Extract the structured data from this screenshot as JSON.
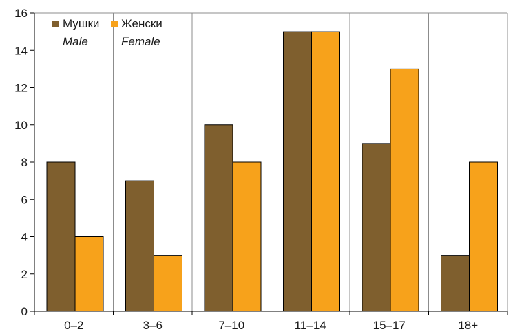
{
  "chart_data": {
    "type": "bar",
    "categories": [
      "0–2",
      "3–6",
      "7–10",
      "11–14",
      "15–17",
      "18+"
    ],
    "series": [
      {
        "name": "Мушки",
        "subname": "Male",
        "values": [
          8,
          7,
          10,
          15,
          9,
          3
        ],
        "color": "#7f5f2e"
      },
      {
        "name": "Женски",
        "subname": "Female",
        "values": [
          4,
          3,
          8,
          15,
          13,
          8
        ],
        "color": "#f7a21b"
      }
    ],
    "yticks": [
      0,
      2,
      4,
      6,
      8,
      10,
      12,
      14,
      16
    ],
    "ylim": [
      0,
      16
    ],
    "grid": "vertical-category-separators",
    "legend_position": "top-left",
    "title": "",
    "xlabel": "",
    "ylabel": ""
  }
}
